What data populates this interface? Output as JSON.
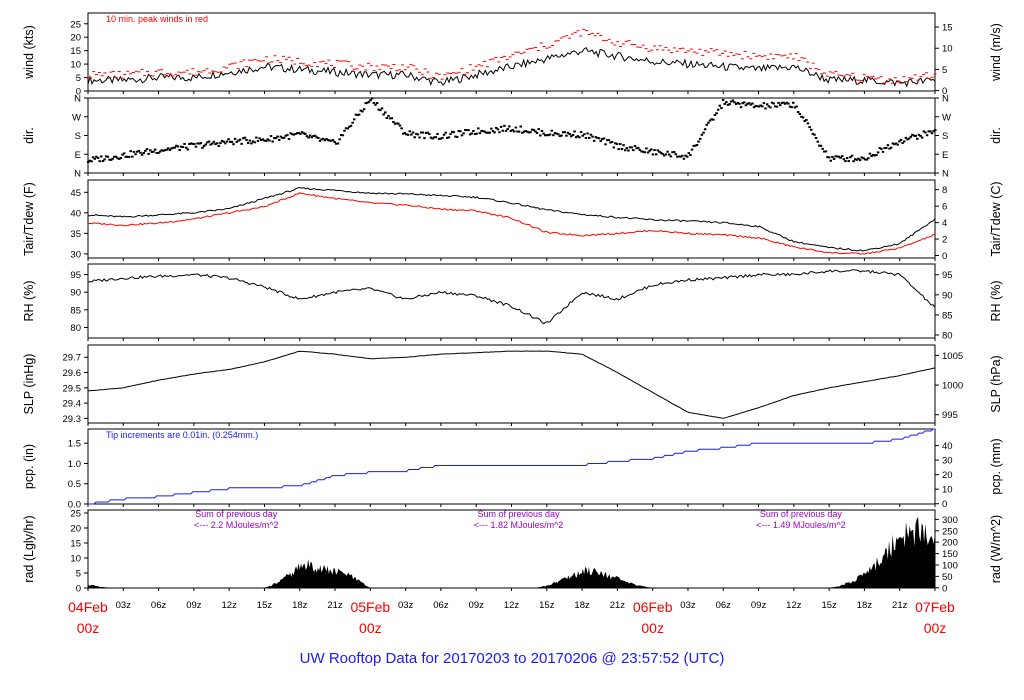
{
  "title": "UW Rooftop Data for 20170203  to  20170206 @ 23:57:52  (UTC)",
  "colors": {
    "frame": "#000000",
    "temp_line": "#000000",
    "dewpoint_line": "#ff0000",
    "peak_wind": "#ff0000",
    "precip_line": "#1a1aff",
    "precip_note": "#1a1aff",
    "rad_note": "#9900cc",
    "date_labels": "#ff0000",
    "footer": "#1a1aff"
  },
  "x_axis": {
    "tick_labels": [
      "04Feb",
      "03z",
      "06z",
      "09z",
      "12z",
      "15z",
      "18z",
      "21z",
      "05Feb",
      "03z",
      "06z",
      "09z",
      "12z",
      "15z",
      "18z",
      "21z",
      "06Feb",
      "03z",
      "06z",
      "09z",
      "12z",
      "15z",
      "18z",
      "21z",
      "07Feb"
    ],
    "date_sub_label": "00z",
    "range_hours": [
      0,
      72
    ]
  },
  "chart_data": [
    {
      "type": "line",
      "panel": "wind",
      "ylabel_left": "wind (kts)",
      "ylabel_right": "wind (m/s)",
      "left_ticks": [
        "0",
        "5",
        "10",
        "15",
        "20",
        "25"
      ],
      "right_ticks": [
        "0",
        "5",
        "10",
        "15"
      ],
      "ylim": [
        0,
        29
      ],
      "annotation": "10 min. peak winds in red",
      "x": [
        0,
        3,
        6,
        9,
        12,
        15,
        18,
        21,
        24,
        27,
        30,
        33,
        36,
        39,
        42,
        45,
        48,
        51,
        54,
        57,
        60,
        63,
        66,
        69,
        72
      ],
      "series": [
        {
          "values": [
            4,
            4,
            5,
            5,
            7,
            9,
            8,
            7,
            6,
            6,
            3,
            6,
            9,
            12,
            15,
            13,
            11,
            10,
            9,
            8,
            9,
            4,
            4,
            3,
            4
          ]
        },
        {
          "values": [
            6,
            6,
            7,
            7,
            9,
            12,
            11,
            10,
            9,
            9,
            5,
            9,
            13,
            17,
            22,
            18,
            16,
            15,
            14,
            13,
            13,
            6,
            5,
            4,
            6
          ]
        }
      ]
    },
    {
      "type": "scatter",
      "panel": "dir",
      "ylabel_left": "dir.",
      "ylabel_right": "dir.",
      "left_ticks": [
        "N",
        "E",
        "S",
        "W",
        "N"
      ],
      "right_ticks": [
        "N",
        "E",
        "S",
        "W",
        "N"
      ],
      "ylim": [
        0,
        360
      ],
      "x": [
        0,
        3,
        6,
        9,
        12,
        15,
        18,
        21,
        24,
        27,
        30,
        33,
        36,
        39,
        42,
        45,
        48,
        51,
        54,
        57,
        60,
        63,
        66,
        69,
        72
      ],
      "series": [
        {
          "values": [
            60,
            85,
            110,
            130,
            150,
            160,
            185,
            140,
            355,
            190,
            175,
            200,
            215,
            190,
            185,
            130,
            100,
            80,
            340,
            320,
            330,
            70,
            70,
            155,
            200
          ]
        }
      ]
    },
    {
      "type": "line",
      "panel": "temp",
      "ylabel_left": "Tair/Tdew (F)",
      "ylabel_right": "Tair/Tdew (C)",
      "left_ticks": [
        "30",
        "35",
        "40",
        "45"
      ],
      "right_ticks": [
        "0",
        "2",
        "4",
        "6",
        "8"
      ],
      "ylim": [
        29,
        48
      ],
      "x": [
        0,
        3,
        6,
        9,
        12,
        15,
        18,
        21,
        24,
        27,
        30,
        33,
        36,
        39,
        42,
        45,
        48,
        51,
        54,
        57,
        60,
        63,
        66,
        69,
        72
      ],
      "series": [
        {
          "values": [
            39.5,
            39,
            39.5,
            40,
            41,
            43.5,
            46,
            45.5,
            44.8,
            44.6,
            44.2,
            43.8,
            42.4,
            40.7,
            39.6,
            38.9,
            38.3,
            38.0,
            37.6,
            36.7,
            33.0,
            31.5,
            30.8,
            32.5,
            38.5
          ]
        },
        {
          "values": [
            37.5,
            37,
            37.5,
            38.5,
            40,
            41.5,
            44.8,
            43.5,
            42.4,
            41.9,
            40.9,
            40.5,
            38.7,
            35.2,
            34.5,
            35.0,
            35.7,
            35.0,
            34.6,
            33.9,
            31.7,
            30.3,
            30.0,
            31.4,
            34.7
          ]
        }
      ]
    },
    {
      "type": "line",
      "panel": "rh",
      "ylabel_left": "RH (%)",
      "ylabel_right": "RH (%)",
      "left_ticks": [
        "80",
        "85",
        "90",
        "95"
      ],
      "right_ticks": [
        "80",
        "85",
        "90",
        "95"
      ],
      "ylim": [
        77,
        98
      ],
      "x": [
        0,
        3,
        6,
        9,
        12,
        15,
        18,
        21,
        24,
        27,
        30,
        33,
        36,
        39,
        42,
        45,
        48,
        51,
        54,
        57,
        60,
        63,
        66,
        69,
        72
      ],
      "series": [
        {
          "values": [
            93,
            94,
            94.5,
            95,
            94,
            91.5,
            88,
            90,
            91,
            88,
            90,
            89,
            86,
            81,
            90,
            88,
            92,
            93.5,
            94,
            95,
            95,
            96,
            96,
            95,
            85.5
          ]
        }
      ]
    },
    {
      "type": "line",
      "panel": "slp",
      "ylabel_left": "SLP (inHg)",
      "ylabel_right": "SLP (hPa)",
      "left_ticks": [
        "29.3",
        "29.4",
        "29.5",
        "29.6",
        "29.7"
      ],
      "right_ticks": [
        "995",
        "1000",
        "1005"
      ],
      "ylim": [
        29.27,
        29.78
      ],
      "x": [
        0,
        3,
        6,
        9,
        12,
        15,
        18,
        21,
        24,
        27,
        30,
        33,
        36,
        39,
        42,
        45,
        48,
        51,
        54,
        57,
        60,
        63,
        66,
        69,
        72
      ],
      "series": [
        {
          "values": [
            29.48,
            29.5,
            29.55,
            29.59,
            29.62,
            29.67,
            29.74,
            29.72,
            29.69,
            29.7,
            29.72,
            29.73,
            29.74,
            29.74,
            29.72,
            29.6,
            29.47,
            29.34,
            29.3,
            29.37,
            29.45,
            29.5,
            29.54,
            29.58,
            29.63
          ]
        }
      ]
    },
    {
      "type": "line",
      "panel": "pcp",
      "ylabel_left": "pcp. (in)",
      "ylabel_right": "pcp. (mm)",
      "left_ticks": [
        "0.0",
        "0.5",
        "1.0",
        "1.5"
      ],
      "right_ticks": [
        "0",
        "10",
        "20",
        "30",
        "40"
      ],
      "ylim": [
        0,
        1.85
      ],
      "annotation": "Tip increments are 0.01in. (0.254mm.)",
      "x": [
        0,
        3,
        6,
        9,
        12,
        15,
        18,
        21,
        24,
        27,
        30,
        33,
        36,
        39,
        42,
        45,
        48,
        51,
        54,
        57,
        60,
        63,
        66,
        69,
        72
      ],
      "series": [
        {
          "values": [
            0.0,
            0.12,
            0.18,
            0.28,
            0.38,
            0.4,
            0.45,
            0.7,
            0.78,
            0.82,
            0.95,
            0.96,
            0.96,
            0.96,
            0.96,
            1.05,
            1.12,
            1.3,
            1.38,
            1.5,
            1.5,
            1.5,
            1.5,
            1.6,
            1.85
          ]
        }
      ]
    },
    {
      "type": "area",
      "panel": "rad",
      "ylabel_left": "rad (Lgly/hr)",
      "ylabel_right": "rad (W/m^2)",
      "left_ticks": [
        "0",
        "5",
        "10",
        "15",
        "20",
        "25"
      ],
      "right_ticks": [
        "0",
        "50",
        "100",
        "150",
        "200",
        "250",
        "300"
      ],
      "ylim": [
        0,
        26
      ],
      "notes": [
        {
          "day_start_hour": 7.5,
          "line1": "Sum of previous day",
          "line2": "<--- 2.2 MJoules/m^2"
        },
        {
          "day_start_hour": 31.5,
          "line1": "Sum of previous day",
          "line2": "<--- 1.82 MJoules/m^2"
        },
        {
          "day_start_hour": 55.5,
          "line1": "Sum of previous day",
          "line2": "<--- 1.49 MJoules/m^2"
        }
      ],
      "x": [
        0,
        1,
        2,
        15,
        16,
        17,
        18,
        19,
        20,
        21,
        22,
        23,
        24,
        38,
        39,
        40,
        41,
        42,
        43,
        44,
        45,
        46,
        47,
        48,
        49,
        63,
        64,
        65,
        66,
        67,
        68,
        69,
        70,
        71,
        72
      ],
      "series": [
        {
          "values": [
            1.5,
            0.5,
            0,
            0,
            2,
            5,
            9,
            10,
            8,
            7,
            6,
            3,
            0,
            0,
            1,
            3,
            5,
            7,
            8,
            6,
            4,
            2,
            1,
            0,
            0,
            0,
            1,
            3,
            6,
            10,
            16,
            24,
            22,
            26,
            20
          ]
        }
      ]
    }
  ]
}
